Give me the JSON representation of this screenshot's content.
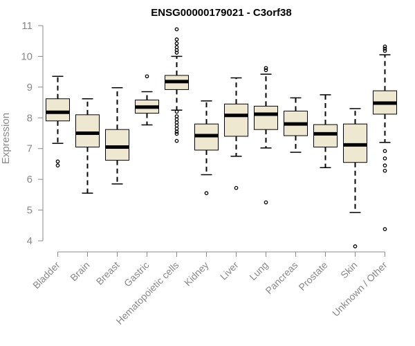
{
  "chart_data": {
    "type": "box",
    "title": "ENSG00000179021 - C3orf38",
    "xlabel": "",
    "ylabel": "Expression",
    "ylim": [
      4,
      11
    ],
    "yticks": [
      4,
      5,
      6,
      7,
      8,
      9,
      10,
      11
    ],
    "grid": false,
    "box_color": "#EEE8D1",
    "categories": [
      "Bladder",
      "Brain",
      "Breast",
      "Gastric",
      "Hematopoietic cells",
      "Kidney",
      "Liver",
      "Lung",
      "Pancreas",
      "Prostate",
      "Skin",
      "Unknown / Other"
    ],
    "boxes": [
      {
        "category": "Bladder",
        "whisker_low": 7.17,
        "q1": 7.9,
        "median": 8.18,
        "q3": 8.62,
        "whisker_high": 9.35,
        "outliers": [
          6.58,
          6.45
        ]
      },
      {
        "category": "Brain",
        "whisker_low": 5.55,
        "q1": 7.05,
        "median": 7.5,
        "q3": 8.1,
        "whisker_high": 8.62,
        "outliers": []
      },
      {
        "category": "Breast",
        "whisker_low": 5.85,
        "q1": 6.62,
        "median": 7.05,
        "q3": 7.62,
        "whisker_high": 8.98,
        "outliers": []
      },
      {
        "category": "Gastric",
        "whisker_low": 7.77,
        "q1": 8.15,
        "median": 8.35,
        "q3": 8.58,
        "whisker_high": 8.85,
        "outliers": [
          9.35
        ]
      },
      {
        "category": "Hematopoietic cells",
        "whisker_low": 8.25,
        "q1": 8.92,
        "median": 9.18,
        "q3": 9.38,
        "whisker_high": 10.0,
        "outliers": [
          10.88,
          10.55,
          10.42,
          10.3,
          10.2,
          10.12,
          8.2,
          8.05,
          7.95,
          7.85,
          7.75,
          7.65,
          7.55,
          7.48,
          7.25
        ]
      },
      {
        "category": "Kidney",
        "whisker_low": 6.15,
        "q1": 6.95,
        "median": 7.42,
        "q3": 7.8,
        "whisker_high": 8.55,
        "outliers": [
          5.55
        ]
      },
      {
        "category": "Liver",
        "whisker_low": 6.75,
        "q1": 7.4,
        "median": 8.08,
        "q3": 8.45,
        "whisker_high": 9.3,
        "outliers": [
          5.72
        ]
      },
      {
        "category": "Lung",
        "whisker_low": 7.02,
        "q1": 7.62,
        "median": 8.12,
        "q3": 8.38,
        "whisker_high": 9.42,
        "outliers": [
          9.62,
          9.55,
          5.25
        ]
      },
      {
        "category": "Pancreas",
        "whisker_low": 6.88,
        "q1": 7.42,
        "median": 7.8,
        "q3": 8.22,
        "whisker_high": 8.65,
        "outliers": []
      },
      {
        "category": "Prostate",
        "whisker_low": 6.38,
        "q1": 7.05,
        "median": 7.48,
        "q3": 7.78,
        "whisker_high": 8.75,
        "outliers": []
      },
      {
        "category": "Skin",
        "whisker_low": 4.92,
        "q1": 6.55,
        "median": 7.12,
        "q3": 7.8,
        "whisker_high": 8.3,
        "outliers": [
          3.82
        ]
      },
      {
        "category": "Unknown / Other",
        "whisker_low": 7.2,
        "q1": 8.12,
        "median": 8.48,
        "q3": 8.88,
        "whisker_high": 10.05,
        "outliers": [
          10.32,
          10.25,
          10.18,
          6.92,
          6.68,
          6.45,
          6.28,
          4.38
        ]
      }
    ]
  }
}
